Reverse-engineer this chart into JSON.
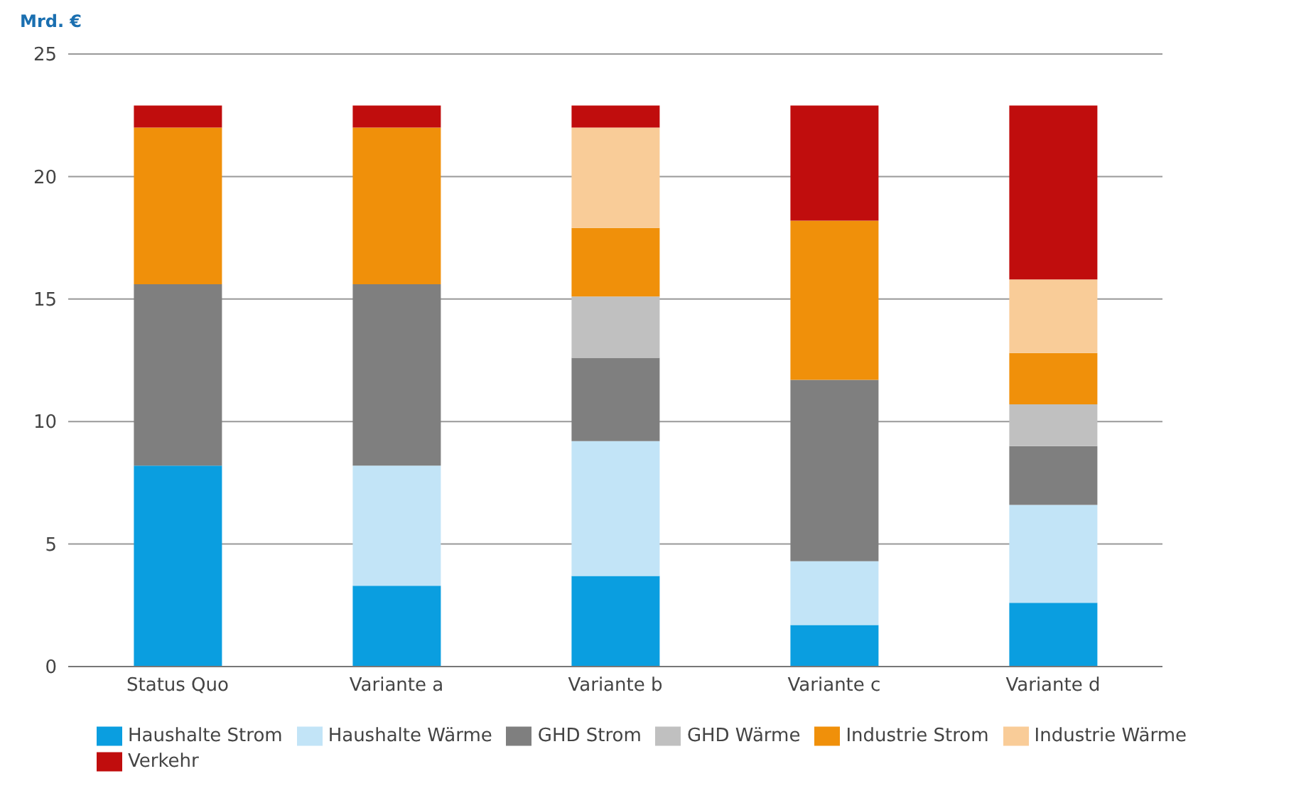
{
  "chart_data": {
    "type": "bar",
    "stacked": true,
    "ylabel": "Mrd. €",
    "categories": [
      "Status Quo",
      "Variante a",
      "Variante b",
      "Variante c",
      "Variante d"
    ],
    "series": [
      {
        "name": "Haushalte Strom",
        "color": "#0a9ee0",
        "values": [
          8.2,
          3.3,
          3.7,
          1.7,
          2.6
        ]
      },
      {
        "name": "Haushalte Wärme",
        "color": "#c2e4f7",
        "values": [
          0,
          4.9,
          5.5,
          2.6,
          4.0
        ]
      },
      {
        "name": "GHD Strom",
        "color": "#7f7f7f",
        "values": [
          7.4,
          7.4,
          3.4,
          7.4,
          2.4
        ]
      },
      {
        "name": "GHD Wärme",
        "color": "#c0c0c0",
        "values": [
          0,
          0,
          2.5,
          0,
          1.7
        ]
      },
      {
        "name": "Industrie Strom",
        "color": "#f0900a",
        "values": [
          6.4,
          6.4,
          2.8,
          6.5,
          2.1
        ]
      },
      {
        "name": "Industrie Wärme",
        "color": "#f9cc98",
        "values": [
          0,
          0,
          4.1,
          0,
          3.0
        ]
      },
      {
        "name": "Verkehr",
        "color": "#c00d0d",
        "values": [
          0.9,
          0.9,
          0.9,
          4.7,
          7.1
        ]
      }
    ],
    "ylim": [
      0,
      25
    ],
    "yticks": [
      0,
      5,
      10,
      15,
      20,
      25
    ],
    "grid": "y",
    "legend": "bottom"
  }
}
